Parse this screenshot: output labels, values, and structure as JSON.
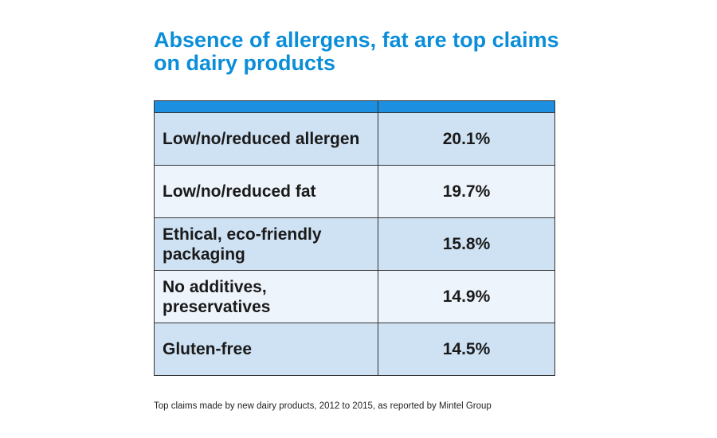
{
  "header": {
    "title": "Absence of allergens, fat are top claims on dairy products"
  },
  "table": {
    "rows": [
      [
        "Low/no/reduced allergen",
        "20.1%"
      ],
      [
        "Low/no/reduced fat",
        "19.7%"
      ],
      [
        "Ethical, eco-friendly packaging",
        "15.8%"
      ],
      [
        "No additives, preservatives",
        "14.9%"
      ],
      [
        "Gluten-free",
        "14.5%"
      ]
    ]
  },
  "footer": {
    "note": "Top claims made by new dairy products, 2012 to 2015, as reported by Mintel Group"
  }
}
